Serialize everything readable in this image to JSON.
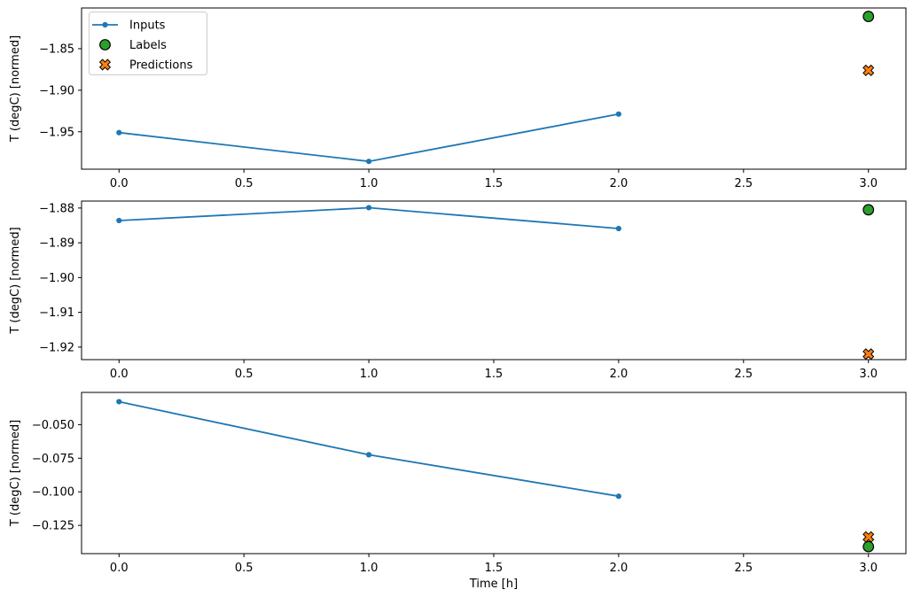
{
  "figure": {
    "xlabel": "Time [h]",
    "x_ticks": [
      0,
      0.5,
      1,
      1.5,
      2,
      2.5,
      3
    ],
    "x_tick_labels": [
      "0.0",
      "0.5",
      "1.0",
      "1.5",
      "2.0",
      "2.5",
      "3.0"
    ],
    "xlim": [
      -0.15,
      3.15
    ],
    "colors": {
      "inputs": "#1f77b4",
      "labels": "#2ca02c",
      "predictions": "#ff7f0e",
      "marker_edge": "#000000",
      "spine": "#000000",
      "legend_border": "#cccccc",
      "background": "#ffffff"
    },
    "legend": {
      "position": "upper left",
      "items": [
        {
          "label": "Inputs",
          "marker": "line-dot",
          "color": "#1f77b4"
        },
        {
          "label": "Labels",
          "marker": "circle",
          "color": "#2ca02c"
        },
        {
          "label": "Predictions",
          "marker": "x-cross",
          "color": "#ff7f0e"
        }
      ]
    }
  },
  "chart_data": [
    {
      "type": "line",
      "title": "",
      "ylabel": "T (degC) [normed]",
      "xlabel": "",
      "grid": false,
      "xlim": [
        -0.15,
        3.15
      ],
      "ylim": [
        -1.995,
        -1.801
      ],
      "y_ticks": [
        -1.85,
        -1.9,
        -1.95
      ],
      "y_tick_labels": [
        "−1.85",
        "−1.90",
        "−1.95"
      ],
      "series": [
        {
          "name": "Inputs",
          "render": "line-dot",
          "color": "#1f77b4",
          "x": [
            0,
            1,
            2
          ],
          "y": [
            -1.951,
            -1.9856,
            -1.9287
          ]
        },
        {
          "name": "Labels",
          "render": "circle",
          "color": "#2ca02c",
          "x": [
            3
          ],
          "y": [
            -1.8112
          ]
        },
        {
          "name": "Predictions",
          "render": "x-cross",
          "color": "#ff7f0e",
          "x": [
            3
          ],
          "y": [
            -1.8761
          ]
        }
      ]
    },
    {
      "type": "line",
      "title": "",
      "ylabel": "T (degC) [normed]",
      "xlabel": "",
      "grid": false,
      "xlim": [
        -0.15,
        3.15
      ],
      "ylim": [
        -1.9236,
        -1.878
      ],
      "y_ticks": [
        -1.88,
        -1.89,
        -1.9,
        -1.91,
        -1.92
      ],
      "y_tick_labels": [
        "−1.88",
        "−1.89",
        "−1.90",
        "−1.91",
        "−1.92"
      ],
      "series": [
        {
          "name": "Inputs",
          "render": "line-dot",
          "color": "#1f77b4",
          "x": [
            0,
            1,
            2
          ],
          "y": [
            -1.8836,
            -1.8799,
            -1.8859
          ]
        },
        {
          "name": "Labels",
          "render": "circle",
          "color": "#2ca02c",
          "x": [
            3
          ],
          "y": [
            -1.8805
          ]
        },
        {
          "name": "Predictions",
          "render": "x-cross",
          "color": "#ff7f0e",
          "x": [
            3
          ],
          "y": [
            -1.922
          ]
        }
      ]
    },
    {
      "type": "line",
      "title": "",
      "ylabel": "T (degC) [normed]",
      "xlabel": "Time [h]",
      "grid": false,
      "xlim": [
        -0.15,
        3.15
      ],
      "ylim": [
        -0.146,
        -0.026
      ],
      "y_ticks": [
        -0.05,
        -0.075,
        -0.1,
        -0.125
      ],
      "y_tick_labels": [
        "−0.050",
        "−0.075",
        "−0.100",
        "−0.125"
      ],
      "series": [
        {
          "name": "Inputs",
          "render": "line-dot",
          "color": "#1f77b4",
          "x": [
            0,
            1,
            2
          ],
          "y": [
            -0.0329,
            -0.0724,
            -0.1033
          ]
        },
        {
          "name": "Labels",
          "render": "circle",
          "color": "#2ca02c",
          "x": [
            3
          ],
          "y": [
            -0.1408
          ]
        },
        {
          "name": "Predictions",
          "render": "x-cross",
          "color": "#ff7f0e",
          "x": [
            3
          ],
          "y": [
            -0.1336
          ]
        }
      ]
    }
  ]
}
